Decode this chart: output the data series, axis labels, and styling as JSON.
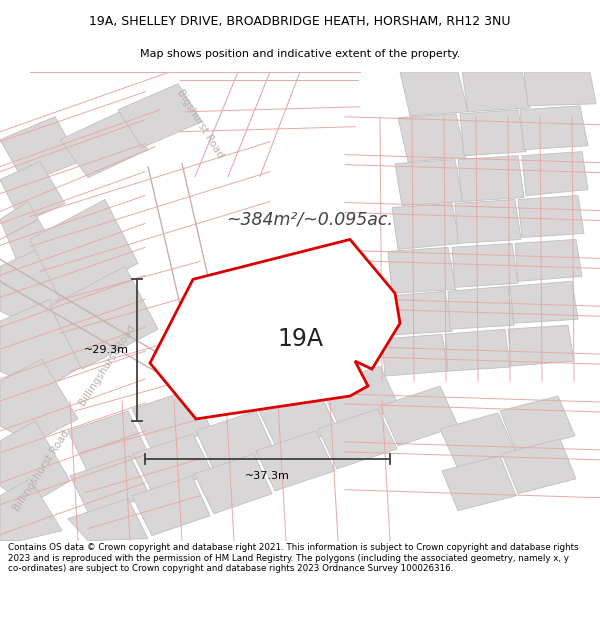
{
  "title_line1": "19A, SHELLEY DRIVE, BROADBRIDGE HEATH, HORSHAM, RH12 3NU",
  "title_line2": "Map shows position and indicative extent of the property.",
  "area_label": "~384m²/~0.095ac.",
  "width_label": "~37.3m",
  "height_label": "~29.3m",
  "property_label": "19A",
  "road_label_billingshurst1": "Billingshurst Road",
  "road_label_billingshurst2": "Billingshurst Road",
  "road_label_bigshurst": "Bigshurst Road",
  "footer_text": "Contains OS data © Crown copyright and database right 2021. This information is subject to Crown copyright and database rights 2023 and is reproduced with the permission of HM Land Registry. The polygons (including the associated geometry, namely x, y co-ordinates) are subject to Crown copyright and database rights 2023 Ordnance Survey 100026316.",
  "bg_color": "#f7f4f4",
  "bldg_fill": "#d8d6d6",
  "bldg_edge": "#c0bebe",
  "parcel_edge": "#e8a8a8",
  "parcel_fill": "none",
  "prop_fill": "#ffffff",
  "prop_edge": "#dd0000",
  "road_fill": "#f0eded",
  "dim_color": "#404040",
  "area_color": "#444444",
  "label_road_color": "#b8b0b0",
  "title_fontsize": 9.0,
  "subtitle_fontsize": 8.0,
  "footer_fontsize": 6.3
}
